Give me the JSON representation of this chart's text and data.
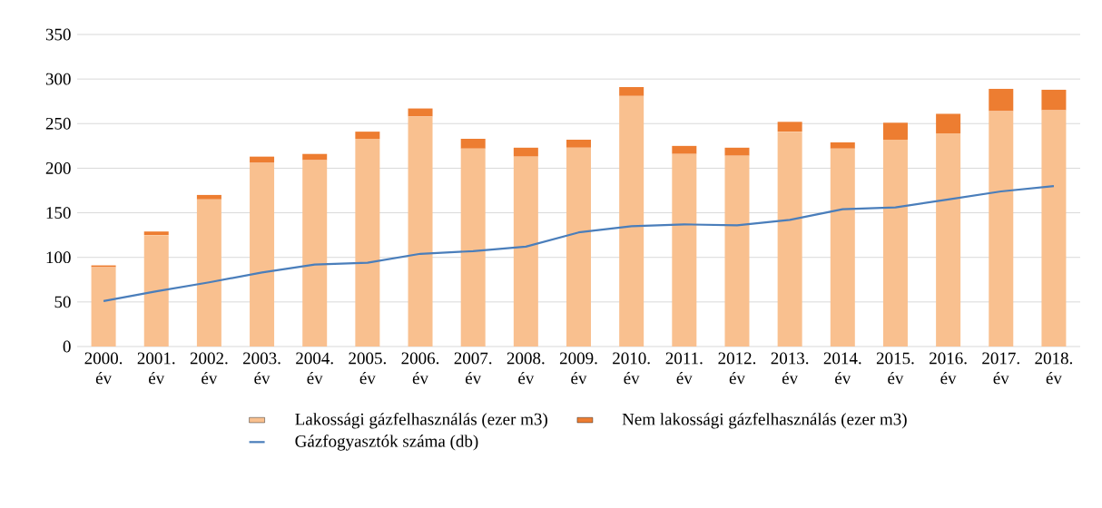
{
  "chart_data": {
    "type": "bar",
    "stacked": true,
    "categories": [
      "2000. év",
      "2001. év",
      "2002. év",
      "2003. év",
      "2004. év",
      "2005. év",
      "2006. év",
      "2007. év",
      "2008. év",
      "2009. év",
      "2010. év",
      "2011. év",
      "2012. év",
      "2013. év",
      "2014. év",
      "2015. év",
      "2016. év",
      "2017. év",
      "2018. év"
    ],
    "series": [
      {
        "name": "Lakossági gázfelhasználás (ezer m3)",
        "color": "#f9c08f",
        "values": [
          89,
          125,
          165,
          206,
          209,
          233,
          258,
          222,
          213,
          223,
          281,
          216,
          214,
          241,
          222,
          232,
          239,
          264,
          265
        ]
      },
      {
        "name": "Nem lakossági gázfelhasználás (ezer m3)",
        "color": "#ed7d31",
        "values": [
          2,
          4,
          5,
          7,
          7,
          8,
          9,
          11,
          10,
          9,
          10,
          9,
          9,
          11,
          7,
          19,
          22,
          25,
          23
        ]
      },
      {
        "name": "Gázfogyasztók száma (db)",
        "type": "line",
        "color": "#4a7ebb",
        "values": [
          51,
          62,
          72,
          83,
          92,
          94,
          104,
          107,
          112,
          128,
          135,
          137,
          136,
          142,
          154,
          156,
          165,
          174,
          180
        ]
      }
    ],
    "ylim": [
      0,
      350
    ],
    "yticks": [
      0,
      50,
      100,
      150,
      200,
      250,
      300,
      350
    ],
    "grid": "y",
    "legend": "bottom"
  }
}
